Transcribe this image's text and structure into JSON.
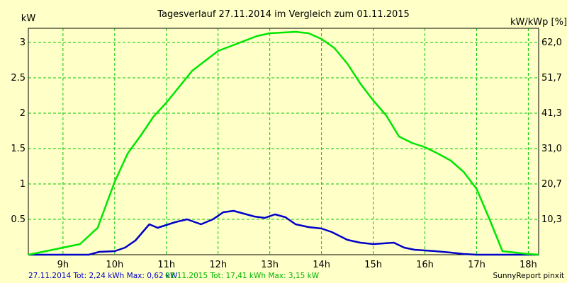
{
  "chart_data": {
    "type": "line",
    "title": "Tagesverlauf 27.11.2014 im Vergleich zum 01.11.2015",
    "ylabel_left": "kW",
    "ylabel_right": "kW/kWp [%]",
    "x_ticks": [
      "9h",
      "10h",
      "11h",
      "12h",
      "13h",
      "14h",
      "15h",
      "16h",
      "17h",
      "18h"
    ],
    "x_tick_values": [
      9,
      10,
      11,
      12,
      13,
      14,
      15,
      16,
      17,
      18
    ],
    "xlim": [
      8.33,
      18.2
    ],
    "ylim": [
      0,
      3.2
    ],
    "y_ticks_left": [
      "0.5",
      "1",
      "1.5",
      "2",
      "2.5",
      "3"
    ],
    "y_tick_values_left": [
      0.5,
      1,
      1.5,
      2,
      2.5,
      3
    ],
    "y_ticks_right": [
      "10,3",
      "20,7",
      "31,0",
      "41,3",
      "51,7",
      "62,0"
    ],
    "grid": true,
    "background_color": "#ffffc8",
    "grid_color": "#00c800",
    "series": [
      {
        "name": "27.11.2014",
        "color": "#0000c8",
        "x": [
          8.33,
          9.0,
          9.5,
          9.7,
          10.0,
          10.2,
          10.4,
          10.67,
          10.83,
          11.0,
          11.17,
          11.4,
          11.67,
          11.9,
          12.1,
          12.3,
          12.5,
          12.7,
          12.9,
          13.1,
          13.3,
          13.5,
          13.75,
          14.0,
          14.2,
          14.5,
          14.75,
          15.0,
          15.2,
          15.4,
          15.6,
          15.8,
          16.0,
          16.2,
          16.5,
          16.75,
          17.0,
          17.2,
          17.5,
          18.2
        ],
        "y": [
          0.0,
          0.0,
          0.0,
          0.04,
          0.05,
          0.1,
          0.2,
          0.43,
          0.38,
          0.42,
          0.46,
          0.5,
          0.43,
          0.5,
          0.6,
          0.62,
          0.58,
          0.54,
          0.52,
          0.57,
          0.53,
          0.43,
          0.39,
          0.37,
          0.32,
          0.21,
          0.17,
          0.15,
          0.16,
          0.17,
          0.1,
          0.07,
          0.06,
          0.05,
          0.03,
          0.01,
          0.0,
          0.0,
          0.0,
          0.0
        ]
      },
      {
        "name": "01.11.2015",
        "color": "#00e600",
        "x": [
          8.33,
          8.67,
          9.0,
          9.33,
          9.67,
          10.0,
          10.25,
          10.5,
          10.75,
          11.0,
          11.5,
          12.0,
          12.5,
          12.75,
          13.0,
          13.5,
          13.75,
          14.0,
          14.25,
          14.5,
          14.75,
          15.0,
          15.25,
          15.5,
          15.75,
          16.0,
          16.25,
          16.5,
          16.75,
          17.0,
          17.25,
          17.5,
          17.75,
          18.0,
          18.2
        ],
        "y": [
          0.0,
          0.05,
          0.1,
          0.15,
          0.38,
          1.03,
          1.43,
          1.68,
          1.95,
          2.15,
          2.6,
          2.88,
          3.02,
          3.09,
          3.13,
          3.15,
          3.13,
          3.05,
          2.92,
          2.7,
          2.42,
          2.18,
          1.97,
          1.67,
          1.58,
          1.52,
          1.43,
          1.33,
          1.17,
          0.93,
          0.5,
          0.05,
          0.03,
          0.01,
          0.0
        ]
      }
    ]
  },
  "footer": {
    "series1_label": "27.11.2014 Tot: 2,24 kWh Max: 0,62 kW",
    "series2_label": "01.11.2015 Tot: 17,41 kWh Max: 3,15 kW",
    "credit": "SunnyReport pinxit"
  }
}
